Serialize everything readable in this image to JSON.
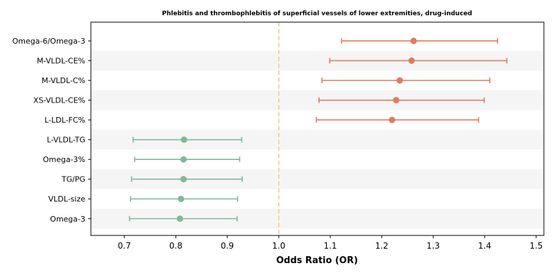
{
  "chart_data": {
    "type": "forest",
    "title": "Phlebitis and thrombophlebitis of superficial vessels of lower extremities, drug-induced",
    "xlabel": "Odds Ratio (OR)",
    "ylabel": "",
    "xlim": [
      0.635,
      1.515
    ],
    "xticks": [
      0.7,
      0.8,
      0.9,
      1.0,
      1.1,
      1.2,
      1.3,
      1.4,
      1.5
    ],
    "xtick_labels": [
      "0.7",
      "0.8",
      "0.9",
      "1.0",
      "1.1",
      "1.2",
      "1.3",
      "1.4",
      "1.5"
    ],
    "reference_line": 1.0,
    "grid": false,
    "row_banding": true,
    "colors": {
      "positive": "#e07b5f",
      "negative": "#7fb89a",
      "reference": "#f5c98a",
      "band": "#f5f5f5"
    },
    "items": [
      {
        "label": "Omega-6/Omega-3",
        "or": 1.262,
        "lower": 1.122,
        "upper": 1.425,
        "group": "positive"
      },
      {
        "label": "M-VLDL-CE%",
        "or": 1.258,
        "lower": 1.099,
        "upper": 1.443,
        "group": "positive"
      },
      {
        "label": "M-VLDL-C%",
        "or": 1.235,
        "lower": 1.084,
        "upper": 1.41,
        "group": "positive"
      },
      {
        "label": "XS-VLDL-CE%",
        "or": 1.228,
        "lower": 1.078,
        "upper": 1.399,
        "group": "positive"
      },
      {
        "label": "L-LDL-FC%",
        "or": 1.22,
        "lower": 1.073,
        "upper": 1.388,
        "group": "positive"
      },
      {
        "label": "L-VLDL-TG",
        "or": 0.816,
        "lower": 0.717,
        "upper": 0.928,
        "group": "negative"
      },
      {
        "label": "Omega-3%",
        "or": 0.815,
        "lower": 0.72,
        "upper": 0.924,
        "group": "negative"
      },
      {
        "label": "TG/PG",
        "or": 0.815,
        "lower": 0.714,
        "upper": 0.929,
        "group": "negative"
      },
      {
        "label": "VLDL-size",
        "or": 0.81,
        "lower": 0.712,
        "upper": 0.92,
        "group": "negative"
      },
      {
        "label": "Omega-3",
        "or": 0.808,
        "lower": 0.71,
        "upper": 0.919,
        "group": "negative"
      }
    ]
  }
}
